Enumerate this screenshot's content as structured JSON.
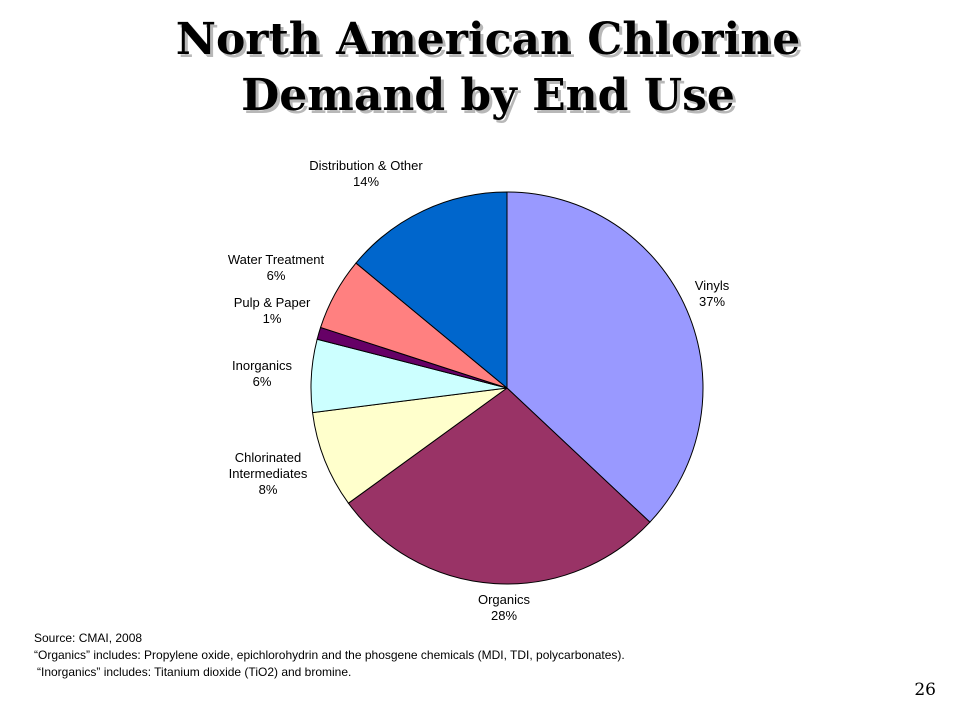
{
  "slide": {
    "title_line1": "North American Chlorine",
    "title_line2": "Demand by End Use",
    "notes": {
      "source": "Source: CMAI, 2008",
      "organics": "“Organics” includes: Propylene oxide, epichlorohydrin and the phosgene chemicals (MDI, TDI, polycarbonates).",
      "inorganics": "“Inorganics” includes: Titanium dioxide (TiO2) and bromine."
    },
    "slide_number": "26"
  },
  "chart_data": {
    "type": "pie",
    "title": "",
    "slices": [
      {
        "name": "Vinyls",
        "label_lines": [
          "Vinyls"
        ],
        "value": 37,
        "value_label": "37%",
        "color": "#9999ff"
      },
      {
        "name": "Organics",
        "label_lines": [
          "Organics"
        ],
        "value": 28,
        "value_label": "28%",
        "color": "#993366"
      },
      {
        "name": "Chlorinated Intermediates",
        "label_lines": [
          "Chlorinated",
          "Intermediates"
        ],
        "value": 8,
        "value_label": "8%",
        "color": "#ffffcc"
      },
      {
        "name": "Inorganics",
        "label_lines": [
          "Inorganics"
        ],
        "value": 6,
        "value_label": "6%",
        "color": "#ccffff"
      },
      {
        "name": "Pulp & Paper",
        "label_lines": [
          "Pulp & Paper"
        ],
        "value": 1,
        "value_label": "1%",
        "color": "#660066"
      },
      {
        "name": "Water Treatment",
        "label_lines": [
          "Water Treatment"
        ],
        "value": 6,
        "value_label": "6%",
        "color": "#ff8080"
      },
      {
        "name": "Distribution & Other",
        "label_lines": [
          "Distribution & Other"
        ],
        "value": 14,
        "value_label": "14%",
        "color": "#0066cc"
      }
    ]
  }
}
